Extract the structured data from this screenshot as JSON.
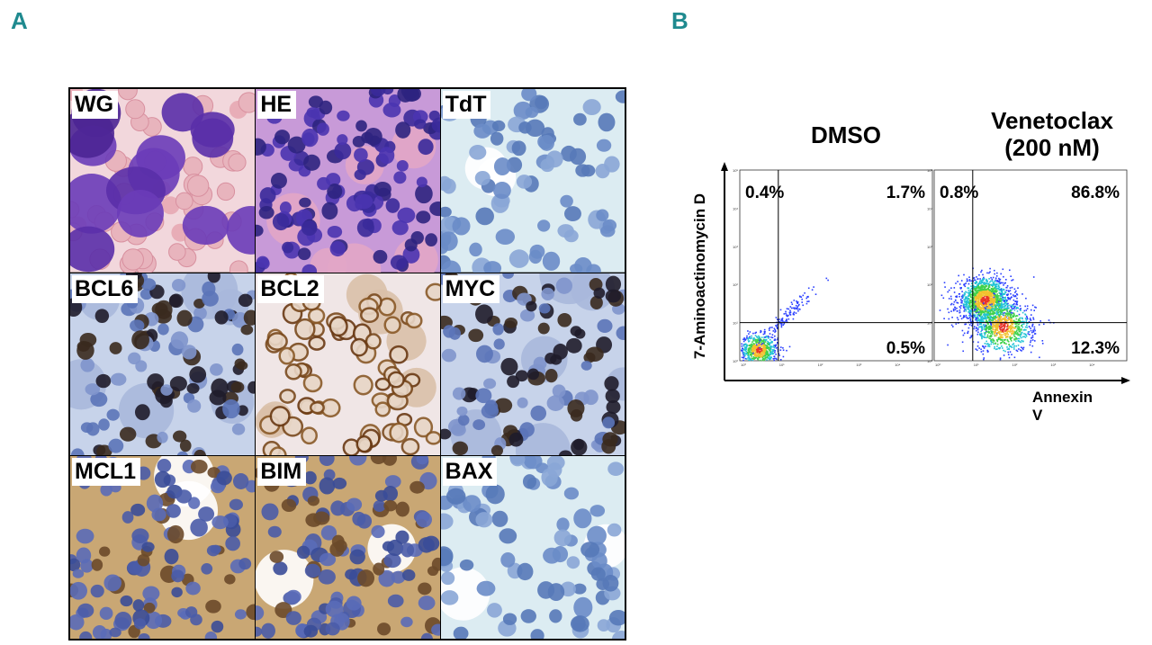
{
  "figure": {
    "panel_a_letter": "A",
    "panel_b_letter": "B"
  },
  "histology": {
    "tiles": [
      {
        "label": "WG",
        "stain": "wright-giemsa"
      },
      {
        "label": "HE",
        "stain": "hematoxylin-eosin"
      },
      {
        "label": "TdT",
        "stain": "ihc-low"
      },
      {
        "label": "BCL6",
        "stain": "ihc-nuclear"
      },
      {
        "label": "BCL2",
        "stain": "ihc-membrane"
      },
      {
        "label": "MYC",
        "stain": "ihc-nuclear"
      },
      {
        "label": "MCL1",
        "stain": "ihc-cytoplasm"
      },
      {
        "label": "BIM",
        "stain": "ihc-cytoplasm"
      },
      {
        "label": "BAX",
        "stain": "ihc-low"
      }
    ]
  },
  "chart_data": {
    "type": "scatter",
    "title": "",
    "xlabel": "Annexin V",
    "ylabel": "7-Aminoactinomycin D",
    "x_scale": "log",
    "y_scale": "log",
    "xlim": [
      1,
      100000
    ],
    "ylim": [
      1,
      100000
    ],
    "x_ticks": [
      "10⁰",
      "10¹",
      "10²",
      "10³",
      "10⁴"
    ],
    "y_ticks": [
      "10⁰",
      "10¹",
      "10²",
      "10³",
      "10⁴",
      "10⁵"
    ],
    "gate_x": 10,
    "gate_y": 10,
    "panels": [
      {
        "title_lines": [
          "DMSO"
        ],
        "quadrants": {
          "upper_left": "0.4%",
          "upper_right": "1.7%",
          "lower_right": "0.5%"
        },
        "populations": [
          {
            "name": "viable",
            "x_center": 3,
            "y_center": 2,
            "spread": 0.25,
            "count": 700
          },
          {
            "name": "diagonal",
            "x_center": 15,
            "y_center": 15,
            "spread": 0.35,
            "count": 120
          }
        ]
      },
      {
        "title_lines": [
          "Venetoclax",
          "(200 nM)"
        ],
        "quadrants": {
          "upper_left": "0.8%",
          "upper_right": "86.8%",
          "lower_right": "12.3%"
        },
        "populations": [
          {
            "name": "late-apoptotic",
            "x_center": 20,
            "y_center": 40,
            "spread": 0.35,
            "count": 1500
          },
          {
            "name": "early-apoptotic",
            "x_center": 60,
            "y_center": 8,
            "spread": 0.4,
            "count": 900
          }
        ]
      }
    ],
    "colors": {
      "axis": "#000000",
      "low_density": "#2a3fff",
      "mid_density": "#22c3d6",
      "high_density": "#e8342a"
    }
  }
}
